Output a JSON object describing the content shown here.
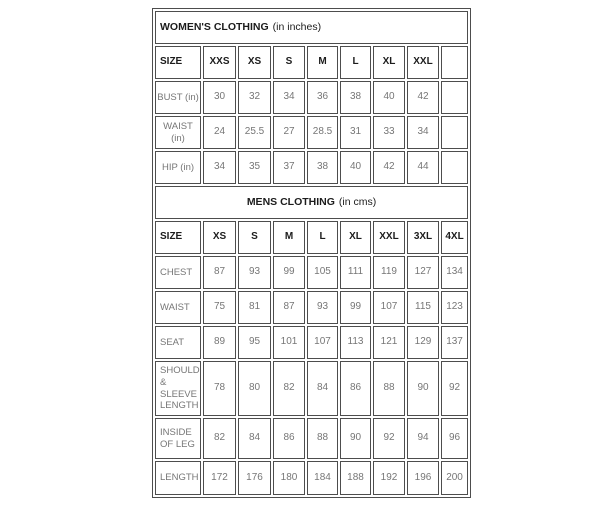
{
  "colors": {
    "border": "#4d4d4d",
    "heading_text": "#1c1c1c",
    "data_text": "#767676",
    "background": "#ffffff"
  },
  "womens_table": {
    "title": "WOMEN'S CLOTHING",
    "title_note": "(in inches)",
    "size_header": "SIZE",
    "size_labels": [
      "XXS",
      "XS",
      "S",
      "M",
      "L",
      "XL",
      "XXL",
      ""
    ],
    "rows": [
      {
        "label": "BUST (in)",
        "values": [
          "30",
          "32",
          "34",
          "36",
          "38",
          "40",
          "42",
          ""
        ]
      },
      {
        "label": "WAIST (in)",
        "values": [
          "24",
          "25.5",
          "27",
          "28.5",
          "31",
          "33",
          "34",
          ""
        ]
      },
      {
        "label": "HIP (in)",
        "values": [
          "34",
          "35",
          "37",
          "38",
          "40",
          "42",
          "44",
          ""
        ]
      }
    ]
  },
  "mens_table": {
    "title": "MENS CLOTHING",
    "title_note": "(in cms)",
    "size_header": "SIZE",
    "size_labels": [
      "XS",
      "S",
      "M",
      "L",
      "XL",
      "XXL",
      "3XL",
      "4XL"
    ],
    "rows": [
      {
        "label": "CHEST",
        "values": [
          "87",
          "93",
          "99",
          "105",
          "111",
          "119",
          "127",
          "134"
        ]
      },
      {
        "label": "WAIST",
        "values": [
          "75",
          "81",
          "87",
          "93",
          "99",
          "107",
          "115",
          "123"
        ]
      },
      {
        "label": "SEAT",
        "values": [
          "89",
          "95",
          "101",
          "107",
          "113",
          "121",
          "129",
          "137"
        ]
      },
      {
        "label": "SHOULDER & SLEEVE LENGTH",
        "values": [
          "78",
          "80",
          "82",
          "84",
          "86",
          "88",
          "90",
          "92"
        ]
      },
      {
        "label": "INSIDE OF LEG",
        "values": [
          "82",
          "84",
          "86",
          "88",
          "90",
          "92",
          "94",
          "96"
        ]
      },
      {
        "label": "LENGTH",
        "values": [
          "172",
          "176",
          "180",
          "184",
          "188",
          "192",
          "196",
          "200"
        ]
      }
    ]
  }
}
